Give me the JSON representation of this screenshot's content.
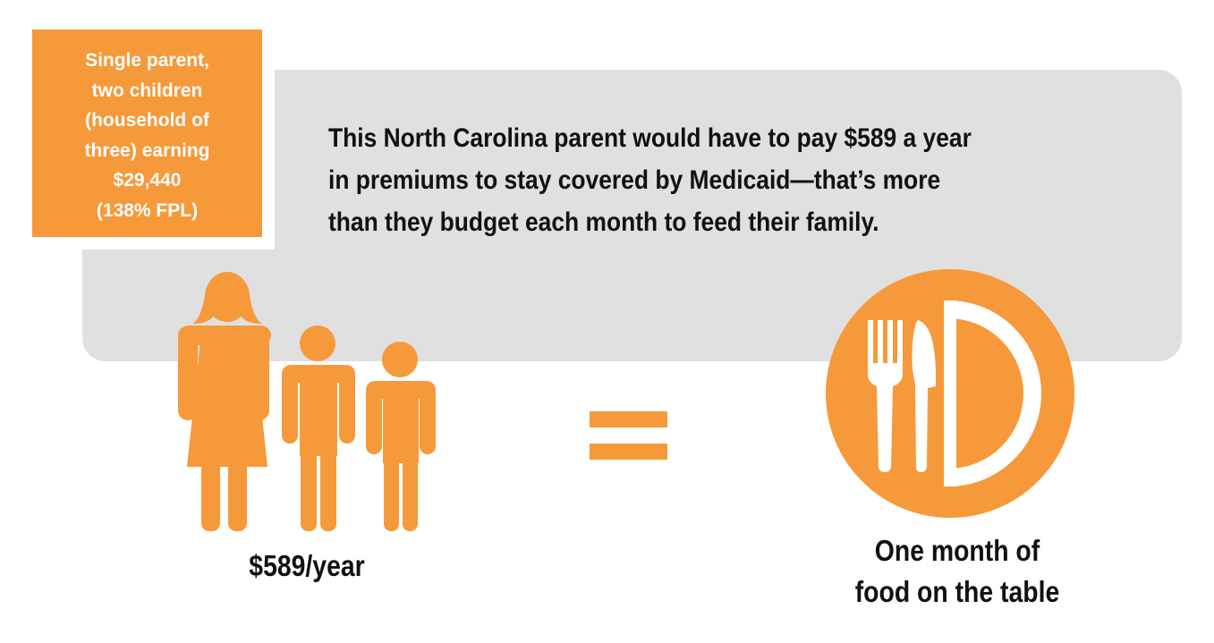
{
  "badge": {
    "lines": [
      "Single parent,",
      "two children",
      "(household of",
      "three) earning",
      "$29,440",
      "(138% FPL)"
    ]
  },
  "headline": {
    "lines": [
      "This North Carolina parent would have to pay $589 a year",
      "in premiums to stay covered by Medicaid—that’s more",
      "than they budget each month to feed their family."
    ]
  },
  "left_caption": "$589/year",
  "right_caption": {
    "lines": [
      "One month of",
      "food on the table"
    ]
  },
  "icons": {
    "family": "family-icon",
    "equals": "equals-sign",
    "food": "plate-fork-knife-icon"
  },
  "colors": {
    "accent": "#f6993a",
    "panel": "#e0e0e0",
    "text": "#111111"
  }
}
